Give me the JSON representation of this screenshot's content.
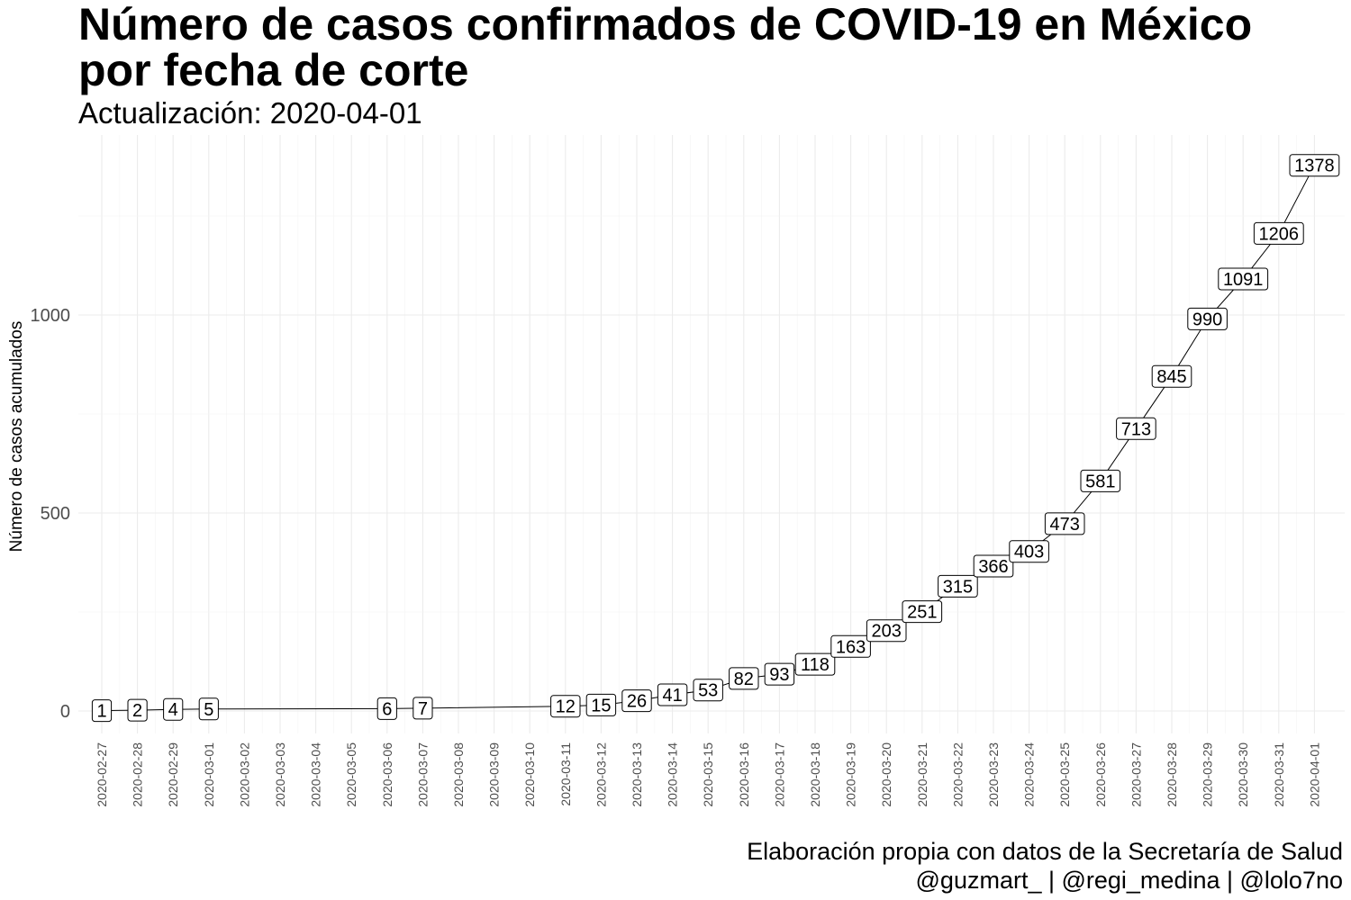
{
  "header": {
    "title_line1": "Número de casos confirmados de COVID-19 en México",
    "title_line2": "por fecha de corte",
    "subtitle": "Actualización: 2020-04-01"
  },
  "caption": {
    "line1": "Elaboración propia con datos de la Secretaría de Salud",
    "line2": "@guzmart_ | @regi_medina | @lolo7no"
  },
  "chart_data": {
    "type": "line",
    "title": "Número de casos confirmados de COVID-19 en México por fecha de corte",
    "subtitle": "Actualización: 2020-04-01",
    "xlabel": "",
    "ylabel": "Número de casos acumulados",
    "ylim": [
      -60,
      1450
    ],
    "yticks": [
      0,
      500,
      1000
    ],
    "grid": true,
    "categories": [
      "2020-02-27",
      "2020-02-28",
      "2020-02-29",
      "2020-03-01",
      "2020-03-02",
      "2020-03-03",
      "2020-03-04",
      "2020-03-05",
      "2020-03-06",
      "2020-03-07",
      "2020-03-08",
      "2020-03-09",
      "2020-03-10",
      "2020-03-11",
      "2020-03-12",
      "2020-03-13",
      "2020-03-14",
      "2020-03-15",
      "2020-03-16",
      "2020-03-17",
      "2020-03-18",
      "2020-03-19",
      "2020-03-20",
      "2020-03-21",
      "2020-03-22",
      "2020-03-23",
      "2020-03-24",
      "2020-03-25",
      "2020-03-26",
      "2020-03-27",
      "2020-03-28",
      "2020-03-29",
      "2020-03-30",
      "2020-03-31",
      "2020-04-01"
    ],
    "values": [
      1,
      2,
      4,
      5,
      null,
      null,
      null,
      null,
      6,
      7,
      null,
      null,
      null,
      12,
      15,
      26,
      41,
      53,
      82,
      93,
      118,
      163,
      203,
      251,
      315,
      366,
      403,
      473,
      581,
      713,
      845,
      990,
      1091,
      1206,
      1378
    ]
  }
}
